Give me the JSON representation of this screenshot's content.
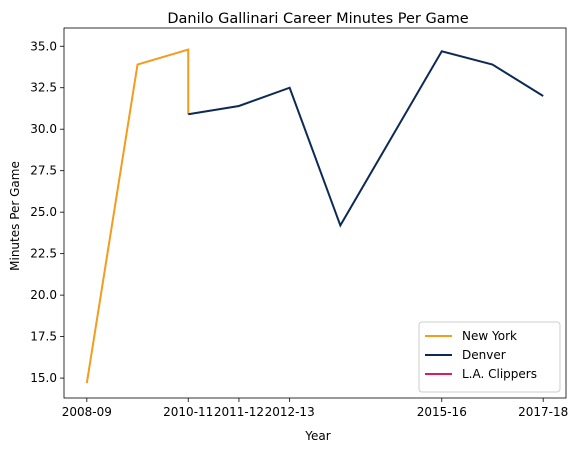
{
  "chart_data": {
    "type": "line",
    "title": "Danilo Gallinari Career Minutes Per Game",
    "xlabel": "Year",
    "ylabel": "Minutes Per Game",
    "x_tick_labels": [
      "2008-09",
      "2010-11",
      "2011-12",
      "2012-13",
      "2015-16",
      "2017-18"
    ],
    "y_ticks": [
      15.0,
      17.5,
      20.0,
      22.5,
      25.0,
      27.5,
      30.0,
      32.5,
      35.0
    ],
    "y_tick_labels": [
      "15.0",
      "17.5",
      "20.0",
      "22.5",
      "25.0",
      "27.5",
      "30.0",
      "32.5",
      "35.0"
    ],
    "ylim": [
      13.8,
      36.1
    ],
    "grid": false,
    "legend_placement": "bottom-right",
    "series": [
      {
        "name": "New York",
        "color": "#f39c1d",
        "x": [
          "2008-09",
          "2009-10",
          "2010-11",
          "2010-11"
        ],
        "y": [
          14.7,
          33.9,
          34.8,
          30.9
        ]
      },
      {
        "name": "Denver",
        "color": "#0d2a55",
        "x": [
          "2010-11",
          "2011-12",
          "2012-13",
          "2013-14",
          "2015-16",
          "2016-17",
          "2017-18"
        ],
        "y": [
          30.9,
          31.4,
          32.5,
          24.2,
          34.7,
          33.9,
          32.0
        ]
      },
      {
        "name": "L.A. Clippers",
        "color": "#e0195a",
        "x": [],
        "y": []
      }
    ]
  }
}
